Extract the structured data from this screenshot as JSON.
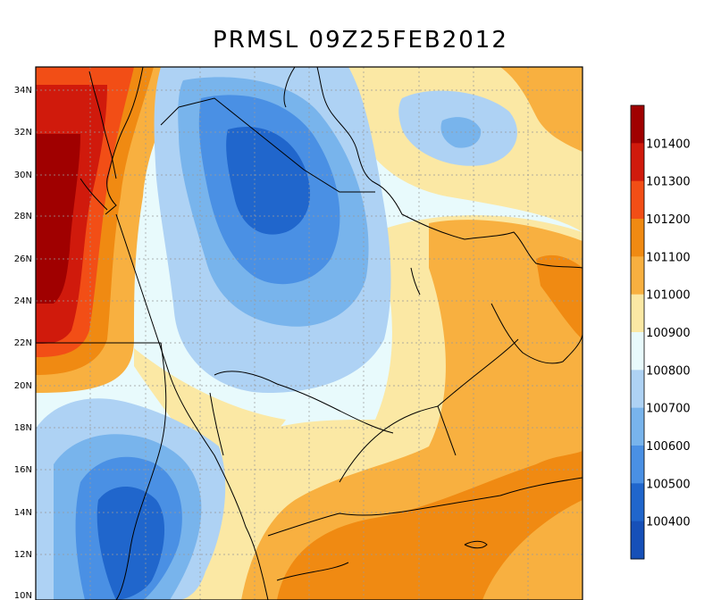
{
  "title": "PRMSL 09Z25FEB2012",
  "lat_labels": [
    "34N",
    "32N",
    "30N",
    "28N",
    "26N",
    "24N",
    "22N",
    "20N",
    "18N",
    "16N",
    "14N",
    "12N",
    "10N"
  ],
  "colorbar": {
    "levels": [
      "101400",
      "101300",
      "101200",
      "101100",
      "101000",
      "100900",
      "100800",
      "100700",
      "100600",
      "100500",
      "100400"
    ],
    "colors": [
      "#a00000",
      "#d01a0c",
      "#f24e16",
      "#f08a12",
      "#f8b040",
      "#fbe8a4",
      "#e8fafc",
      "#aed2f4",
      "#78b4ec",
      "#4a90e4",
      "#2066cc",
      "#1650b8"
    ]
  }
}
